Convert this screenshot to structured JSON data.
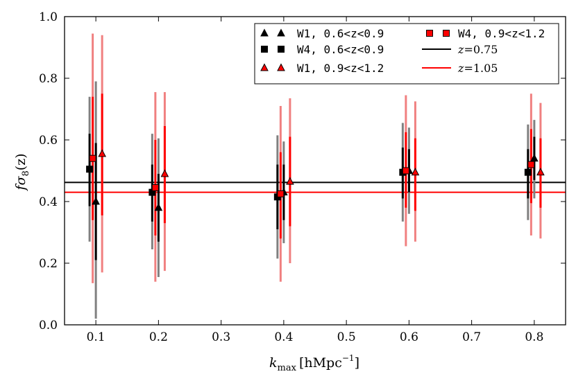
{
  "chart_data": {
    "type": "scatter",
    "xlabel": "k_max [hMpc^-1]",
    "xlabel_parts": {
      "k": "k",
      "sub": "max",
      "unit": "[hMpc",
      "exp": "−1",
      "close": "]"
    },
    "ylabel_parts": {
      "f": "f",
      "sigma": "σ",
      "sub": "8",
      "z": "(z)"
    },
    "xlim": [
      0.05,
      0.85
    ],
    "ylim": [
      0.0,
      1.0
    ],
    "x_ticks": [
      0.1,
      0.2,
      0.3,
      0.4,
      0.5,
      0.6,
      0.7,
      0.8
    ],
    "x_tick_labels": [
      "0.1",
      "0.2",
      "0.3",
      "0.4",
      "0.5",
      "0.6",
      "0.7",
      "0.8"
    ],
    "y_ticks": [
      0.0,
      0.2,
      0.4,
      0.6,
      0.8,
      1.0
    ],
    "y_tick_labels": [
      "0.0",
      "0.2",
      "0.4",
      "0.6",
      "0.8",
      "1.0"
    ],
    "hlines": [
      {
        "name": "z=0.75",
        "label_lhs": "z",
        "label_rhs": "=0.75",
        "y": 0.462,
        "color": "#000000"
      },
      {
        "name": "z=1.05",
        "label_lhs": "z",
        "label_rhs": "=1.05",
        "y": 0.43,
        "color": "#ff0000"
      }
    ],
    "series": [
      {
        "name": "W1, 0.6<z<0.9",
        "marker": "triangle",
        "fill": "#000000",
        "x": [
          0.1,
          0.2,
          0.4,
          0.6,
          0.8
        ],
        "y": [
          0.4,
          0.38,
          0.43,
          0.5,
          0.54
        ],
        "err_inner": [
          [
            0.21,
            0.59
          ],
          [
            0.27,
            0.49
          ],
          [
            0.34,
            0.52
          ],
          [
            0.43,
            0.57
          ],
          [
            0.47,
            0.61
          ]
        ],
        "err_outer": [
          [
            0.02,
            0.79
          ],
          [
            0.155,
            0.605
          ],
          [
            0.265,
            0.595
          ],
          [
            0.36,
            0.64
          ],
          [
            0.41,
            0.665
          ]
        ],
        "bar_colors": [
          "#000000",
          "#808080"
        ]
      },
      {
        "name": "W4, 0.6<z<0.9",
        "marker": "square",
        "fill": "#000000",
        "x": [
          0.09,
          0.19,
          0.39,
          0.59,
          0.79
        ],
        "y": [
          0.505,
          0.43,
          0.415,
          0.495,
          0.495
        ],
        "err_inner": [
          [
            0.385,
            0.62
          ],
          [
            0.335,
            0.52
          ],
          [
            0.31,
            0.52
          ],
          [
            0.41,
            0.575
          ],
          [
            0.41,
            0.57
          ]
        ],
        "err_outer": [
          [
            0.27,
            0.74
          ],
          [
            0.245,
            0.62
          ],
          [
            0.215,
            0.615
          ],
          [
            0.335,
            0.655
          ],
          [
            0.34,
            0.65
          ]
        ],
        "bar_colors": [
          "#000000",
          "#808080"
        ]
      },
      {
        "name": "W1, 0.9<z<1.2",
        "marker": "triangle",
        "fill": "#ff0000",
        "x": [
          0.11,
          0.21,
          0.41,
          0.61,
          0.81
        ],
        "y": [
          0.555,
          0.49,
          0.465,
          0.495,
          0.495
        ],
        "err_inner": [
          [
            0.355,
            0.75
          ],
          [
            0.33,
            0.645
          ],
          [
            0.32,
            0.61
          ],
          [
            0.37,
            0.605
          ],
          [
            0.38,
            0.605
          ]
        ],
        "err_outer": [
          [
            0.17,
            0.94
          ],
          [
            0.175,
            0.755
          ],
          [
            0.2,
            0.735
          ],
          [
            0.27,
            0.725
          ],
          [
            0.28,
            0.72
          ]
        ],
        "bar_colors": [
          "#ff0000",
          "#f08080"
        ]
      },
      {
        "name": "W4, 0.9<z<1.2",
        "marker": "square",
        "fill": "#ff0000",
        "x": [
          0.095,
          0.195,
          0.395,
          0.595,
          0.795
        ],
        "y": [
          0.54,
          0.445,
          0.425,
          0.5,
          0.52
        ],
        "err_inner": [
          [
            0.34,
            0.74
          ],
          [
            0.29,
            0.6
          ],
          [
            0.28,
            0.56
          ],
          [
            0.38,
            0.625
          ],
          [
            0.395,
            0.635
          ]
        ],
        "err_outer": [
          [
            0.135,
            0.945
          ],
          [
            0.14,
            0.755
          ],
          [
            0.14,
            0.71
          ],
          [
            0.255,
            0.745
          ],
          [
            0.29,
            0.75
          ]
        ],
        "bar_colors": [
          "#ff0000",
          "#f08080"
        ]
      }
    ]
  },
  "legend": {
    "items": [
      {
        "label": "W1, 0.6<z<0.9",
        "kind": "marker",
        "marker": "triangle",
        "fill": "#000000"
      },
      {
        "label": "W4, 0.6<z<0.9",
        "kind": "marker",
        "marker": "square",
        "fill": "#000000"
      },
      {
        "label": "W1, 0.9<z<1.2",
        "kind": "marker",
        "marker": "triangle",
        "fill": "#ff0000"
      },
      {
        "label": "W4, 0.9<z<1.2",
        "kind": "marker",
        "marker": "square",
        "fill": "#ff0000"
      },
      {
        "label_lhs": "z",
        "label_rhs": "=0.75",
        "kind": "line",
        "color": "#000000"
      },
      {
        "label_lhs": "z",
        "label_rhs": "=1.05",
        "kind": "line",
        "color": "#ff0000"
      }
    ]
  }
}
